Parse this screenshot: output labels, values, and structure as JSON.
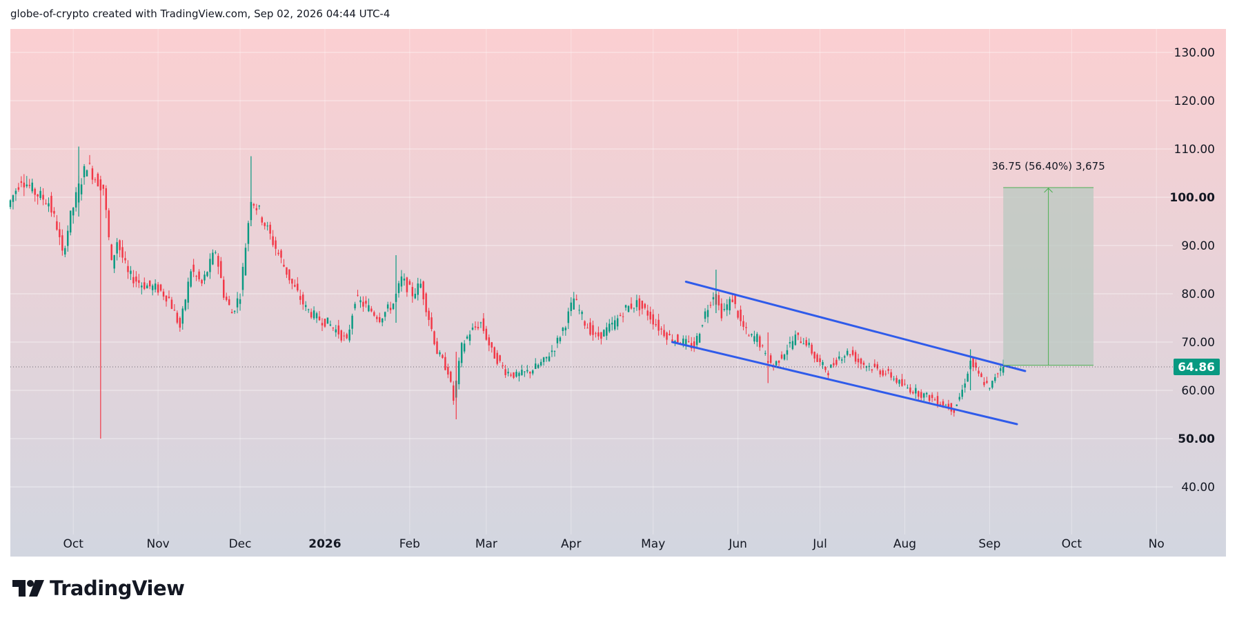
{
  "header": {
    "attribution": "globe-of-crypto created with TradingView.com, Sep 02, 2026 04:44 UTC-4"
  },
  "logo": {
    "text": "TradingView",
    "icon": "tradingview-logo-icon"
  },
  "colors": {
    "bg_top": "#fbcfd1",
    "bg_bottom": "#d2d6e0",
    "up": "#089981",
    "down": "#f23645",
    "channel": "#2f5bea",
    "target_fill": "#b9c8c0",
    "target_line": "#4caf50",
    "price_badge": "#089981"
  },
  "chart_data": {
    "type": "candlestick",
    "title": "",
    "xlabel": "",
    "ylabel": "",
    "x_range": [
      "2025-09-08",
      "2026-11-07"
    ],
    "ylim": [
      30,
      135
    ],
    "y_ticks": [
      "130.00",
      "120.00",
      "110.00",
      "100.00",
      "90.00",
      "80.00",
      "70.00",
      "60.00",
      "50.00",
      "40.00"
    ],
    "y_tick_values": [
      130,
      120,
      110,
      100,
      90,
      80,
      70,
      60,
      50,
      40
    ],
    "x_ticks": [
      {
        "label": "Oct",
        "date": "2025-10-01",
        "bold": false
      },
      {
        "label": "Nov",
        "date": "2025-11-01",
        "bold": false
      },
      {
        "label": "Dec",
        "date": "2025-12-01",
        "bold": false
      },
      {
        "label": "2026",
        "date": "2026-01-01",
        "bold": true
      },
      {
        "label": "Feb",
        "date": "2026-02-01",
        "bold": false
      },
      {
        "label": "Mar",
        "date": "2026-03-01",
        "bold": false
      },
      {
        "label": "Apr",
        "date": "2026-04-01",
        "bold": false
      },
      {
        "label": "May",
        "date": "2026-05-01",
        "bold": false
      },
      {
        "label": "Jun",
        "date": "2026-06-01",
        "bold": false
      },
      {
        "label": "Jul",
        "date": "2026-07-01",
        "bold": false
      },
      {
        "label": "Aug",
        "date": "2026-08-01",
        "bold": false
      },
      {
        "label": "Sep",
        "date": "2026-09-01",
        "bold": false
      },
      {
        "label": "Oct",
        "date": "2026-10-01",
        "bold": false
      },
      {
        "label": "No",
        "date": "2026-11-01",
        "bold": false
      }
    ],
    "grid": true,
    "last_price": 64.86,
    "last_price_label": "64.86",
    "close_path": [
      [
        "2025-09-08",
        98
      ],
      [
        "2025-09-13",
        104
      ],
      [
        "2025-09-18",
        101
      ],
      [
        "2025-09-23",
        99
      ],
      [
        "2025-09-26",
        94
      ],
      [
        "2025-09-28",
        88
      ],
      [
        "2025-10-01",
        96
      ],
      [
        "2025-10-04",
        102
      ],
      [
        "2025-10-07",
        107
      ],
      [
        "2025-10-10",
        104
      ],
      [
        "2025-10-13",
        102
      ],
      [
        "2025-10-16",
        86
      ],
      [
        "2025-10-18",
        91
      ],
      [
        "2025-10-22",
        84
      ],
      [
        "2025-10-27",
        82
      ],
      [
        "2025-11-02",
        81
      ],
      [
        "2025-11-06",
        79
      ],
      [
        "2025-11-10",
        73
      ],
      [
        "2025-11-14",
        85
      ],
      [
        "2025-11-18",
        82
      ],
      [
        "2025-11-23",
        89
      ],
      [
        "2025-11-26",
        80
      ],
      [
        "2025-11-29",
        76
      ],
      [
        "2025-12-02",
        80
      ],
      [
        "2025-12-06",
        100
      ],
      [
        "2025-12-09",
        97
      ],
      [
        "2025-12-13",
        92
      ],
      [
        "2025-12-17",
        87
      ],
      [
        "2025-12-21",
        82
      ],
      [
        "2025-12-26",
        77
      ],
      [
        "2025-12-30",
        75
      ],
      [
        "2026-01-03",
        74
      ],
      [
        "2026-01-07",
        72
      ],
      [
        "2026-01-10",
        70
      ],
      [
        "2026-01-13",
        79
      ],
      [
        "2026-01-18",
        77
      ],
      [
        "2026-01-22",
        75
      ],
      [
        "2026-01-27",
        78
      ],
      [
        "2026-01-30",
        83
      ],
      [
        "2026-02-03",
        80
      ],
      [
        "2026-02-06",
        82
      ],
      [
        "2026-02-09",
        75
      ],
      [
        "2026-02-12",
        68
      ],
      [
        "2026-02-16",
        64
      ],
      [
        "2026-02-18",
        58
      ],
      [
        "2026-02-21",
        69
      ],
      [
        "2026-02-24",
        72
      ],
      [
        "2026-02-28",
        74
      ],
      [
        "2026-03-04",
        68
      ],
      [
        "2026-03-09",
        64
      ],
      [
        "2026-03-13",
        63
      ],
      [
        "2026-03-18",
        64
      ],
      [
        "2026-03-23",
        66
      ],
      [
        "2026-03-27",
        69
      ],
      [
        "2026-03-31",
        74
      ],
      [
        "2026-04-03",
        79
      ],
      [
        "2026-04-07",
        74
      ],
      [
        "2026-04-11",
        71
      ],
      [
        "2026-04-14",
        72
      ],
      [
        "2026-04-18",
        74
      ],
      [
        "2026-04-22",
        77
      ],
      [
        "2026-04-26",
        78
      ],
      [
        "2026-04-30",
        76
      ],
      [
        "2026-05-04",
        73
      ],
      [
        "2026-05-08",
        71
      ],
      [
        "2026-05-13",
        70
      ],
      [
        "2026-05-17",
        69
      ],
      [
        "2026-05-21",
        76
      ],
      [
        "2026-05-24",
        80
      ],
      [
        "2026-05-27",
        76
      ],
      [
        "2026-05-31",
        79
      ],
      [
        "2026-06-03",
        74
      ],
      [
        "2026-06-06",
        71
      ],
      [
        "2026-06-09",
        71
      ],
      [
        "2026-06-12",
        67
      ],
      [
        "2026-06-15",
        65
      ],
      [
        "2026-06-19",
        68
      ],
      [
        "2026-06-23",
        71
      ],
      [
        "2026-06-27",
        70
      ],
      [
        "2026-07-01",
        66
      ],
      [
        "2026-07-05",
        64
      ],
      [
        "2026-07-09",
        67
      ],
      [
        "2026-07-13",
        68
      ],
      [
        "2026-07-16",
        66
      ],
      [
        "2026-07-20",
        65
      ],
      [
        "2026-07-24",
        64
      ],
      [
        "2026-07-28",
        63
      ],
      [
        "2026-08-01",
        61
      ],
      [
        "2026-08-05",
        60
      ],
      [
        "2026-08-09",
        59
      ],
      [
        "2026-08-13",
        58
      ],
      [
        "2026-08-17",
        57
      ],
      [
        "2026-08-20",
        56
      ],
      [
        "2026-08-23",
        60
      ],
      [
        "2026-08-26",
        66
      ],
      [
        "2026-08-29",
        63
      ],
      [
        "2026-09-01",
        61
      ],
      [
        "2026-09-02",
        60
      ],
      [
        "2026-09-04",
        63
      ],
      [
        "2026-09-06",
        64.86
      ]
    ],
    "wicks": [
      {
        "date": "2025-10-11",
        "high": 103,
        "low": 50,
        "type": "down"
      },
      {
        "date": "2025-10-03",
        "high": 110.5,
        "low": 96,
        "type": "up"
      },
      {
        "date": "2025-12-05",
        "high": 108.5,
        "low": 94,
        "type": "up"
      },
      {
        "date": "2026-02-18",
        "high": 68,
        "low": 54,
        "type": "down"
      },
      {
        "date": "2026-01-27",
        "high": 88,
        "low": 74,
        "type": "up"
      },
      {
        "date": "2026-05-24",
        "high": 85,
        "low": 76,
        "type": "up"
      },
      {
        "date": "2026-06-12",
        "high": 72,
        "low": 61.5,
        "type": "down"
      },
      {
        "date": "2026-08-25",
        "high": 68.5,
        "low": 60,
        "type": "up"
      }
    ],
    "channel_lines": [
      {
        "name": "",
        "from": [
          "2026-05-13",
          82.5
        ],
        "to": [
          "2026-09-14",
          64.0
        ]
      },
      {
        "name": "",
        "from": [
          "2026-05-08",
          70.0
        ],
        "to": [
          "2026-09-11",
          53.0
        ]
      }
    ],
    "target_box": {
      "from_date": "2026-09-06",
      "to_date": "2026-10-09",
      "low": 65.2,
      "high": 102,
      "label": "36.75 (56.40%) 3,675"
    }
  }
}
